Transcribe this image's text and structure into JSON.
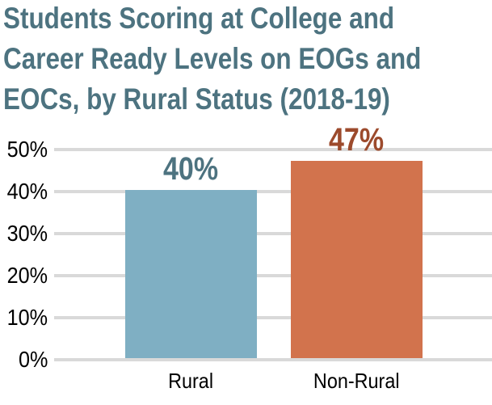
{
  "chart_data": {
    "type": "bar",
    "title": "Students Scoring at College and Career Ready Levels on EOGs and EOCs, by Rural Status (2018-19)",
    "title_lines": [
      "Students Scoring at College and",
      "Career Ready Levels on EOGs and",
      "EOCs, by Rural Status (2018-19)"
    ],
    "categories": [
      "Rural",
      "Non-Rural"
    ],
    "values": [
      40,
      47
    ],
    "value_labels": [
      "40%",
      "47%"
    ],
    "bar_colors": [
      "#7FAFC3",
      "#D2734D"
    ],
    "value_label_colors": [
      "#4D7380",
      "#9C4A2C"
    ],
    "yticks": [
      {
        "value": 0,
        "label": "0%"
      },
      {
        "value": 10,
        "label": "10%"
      },
      {
        "value": 20,
        "label": "20%"
      },
      {
        "value": 30,
        "label": "30%"
      },
      {
        "value": 40,
        "label": "40%"
      },
      {
        "value": 50,
        "label": "50%"
      }
    ],
    "ylim": [
      0,
      52
    ],
    "xlabel": "",
    "ylabel": "",
    "grid": "horizontal",
    "legend": "none",
    "colors": {
      "title": "#4D7380",
      "axis_text": "#000000",
      "gridline": "#D9D9D9",
      "background": "#FFFFFF"
    }
  }
}
